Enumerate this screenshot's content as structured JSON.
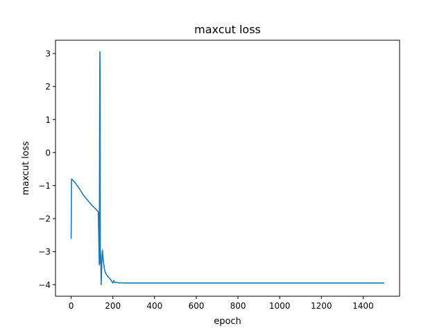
{
  "chart_data": {
    "type": "line",
    "title": "maxcut loss",
    "xlabel": "epoch",
    "ylabel": "maxcut loss",
    "xlim": [
      -75,
      1575
    ],
    "ylim": [
      -4.35,
      3.4
    ],
    "xticks": [
      0,
      200,
      400,
      600,
      800,
      1000,
      1200,
      1400
    ],
    "yticks": [
      -4,
      -3,
      -2,
      -1,
      0,
      1,
      2,
      3
    ],
    "grid": false,
    "legend": "none",
    "series": [
      {
        "color": "#1f77b4",
        "x": [
          0,
          2,
          10,
          20,
          40,
          60,
          80,
          100,
          120,
          130,
          135,
          137,
          138,
          139,
          140,
          141,
          142,
          144,
          146,
          148,
          150,
          152,
          155,
          160,
          165,
          170,
          180,
          190,
          200,
          205,
          210,
          220,
          230,
          240,
          250,
          300,
          400,
          600,
          800,
          1000,
          1200,
          1400,
          1500
        ],
        "y": [
          -2.6,
          -0.8,
          -0.85,
          -0.92,
          -1.1,
          -1.3,
          -1.45,
          -1.6,
          -1.72,
          -1.8,
          -3.4,
          2.0,
          3.05,
          2.4,
          -3.35,
          -3.0,
          -3.2,
          -4.0,
          -3.6,
          -3.2,
          -2.95,
          -3.1,
          -3.3,
          -3.55,
          -3.65,
          -3.7,
          -3.78,
          -3.85,
          -3.95,
          -3.88,
          -3.94,
          -3.93,
          -3.95,
          -3.94,
          -3.95,
          -3.95,
          -3.95,
          -3.95,
          -3.95,
          -3.95,
          -3.95,
          -3.95,
          -3.95
        ]
      }
    ]
  }
}
